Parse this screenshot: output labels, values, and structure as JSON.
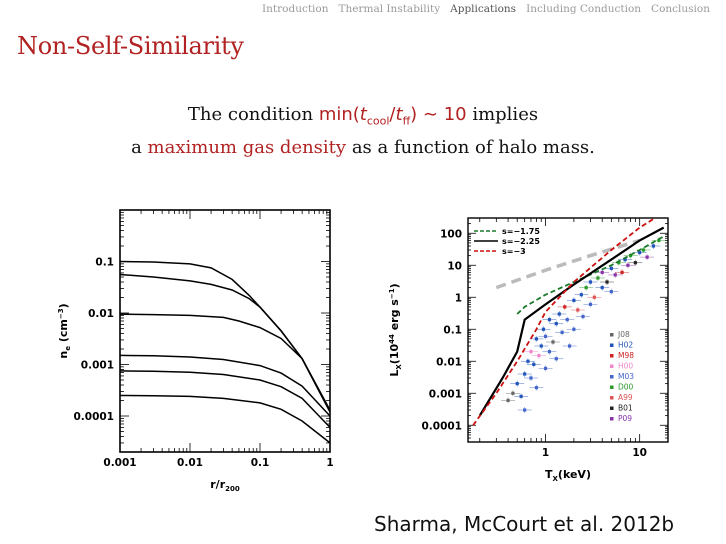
{
  "nav": {
    "items": [
      "Introduction",
      "Thermal Instability",
      "Applications",
      "Including Conduction",
      "Conclusion"
    ],
    "active_index": 2
  },
  "slide": {
    "title": "Non-Self-Similarity",
    "statement": {
      "pre": "The condition ",
      "math_min": "min(",
      "math_t1": "t",
      "math_sub1": "cool",
      "math_slash": "/",
      "math_t2": "t",
      "math_sub2": "ff",
      "math_close": ") ∼ 10",
      "post1": " implies",
      "line2_pre": "a ",
      "line2_hl": "maximum gas density",
      "line2_post": " as a function of halo mass."
    },
    "citation": "Sharma, McCourt et al. 2012b"
  },
  "chart_data": [
    {
      "type": "line",
      "xlabel": "r/r",
      "xlabel_sub": "200",
      "ylabel": "n",
      "ylabel_sub": "e",
      "ylabel_unit": " (cm",
      "ylabel_sup": "−3",
      "ylabel_close": ")",
      "xscale": "log",
      "yscale": "log",
      "xlim": [
        0.001,
        1
      ],
      "ylim": [
        2e-05,
        1
      ],
      "x_ticks": [
        "0.001",
        "0.01",
        "0.1",
        "1"
      ],
      "y_ticks": [
        "0.0001",
        "0.001",
        "0.01",
        "0.1"
      ],
      "series": [
        {
          "x": [
            0.001,
            0.003,
            0.01,
            0.02,
            0.04,
            0.07,
            0.1,
            0.2,
            0.4,
            1
          ],
          "y": [
            0.1,
            0.098,
            0.09,
            0.075,
            0.045,
            0.022,
            0.013,
            0.0045,
            0.0013,
            0.00012
          ]
        },
        {
          "x": [
            0.001,
            0.003,
            0.01,
            0.02,
            0.04,
            0.07,
            0.1,
            0.2,
            0.4,
            1
          ],
          "y": [
            0.056,
            0.05,
            0.042,
            0.036,
            0.028,
            0.019,
            0.013,
            0.0045,
            0.0013,
            0.00012
          ]
        },
        {
          "x": [
            0.001,
            0.003,
            0.01,
            0.03,
            0.05,
            0.1,
            0.2,
            0.4,
            1
          ],
          "y": [
            0.0095,
            0.0093,
            0.009,
            0.0082,
            0.007,
            0.0052,
            0.0032,
            0.0013,
            0.00013
          ]
        },
        {
          "x": [
            0.001,
            0.003,
            0.01,
            0.03,
            0.1,
            0.2,
            0.4,
            1
          ],
          "y": [
            0.0015,
            0.00148,
            0.0014,
            0.00125,
            0.00095,
            0.00068,
            0.00038,
            0.0001
          ]
        },
        {
          "x": [
            0.001,
            0.003,
            0.01,
            0.03,
            0.1,
            0.2,
            0.4,
            1
          ],
          "y": [
            0.00075,
            0.00074,
            0.00071,
            0.00064,
            0.0005,
            0.00037,
            0.00022,
            6e-05
          ]
        },
        {
          "x": [
            0.001,
            0.003,
            0.01,
            0.03,
            0.1,
            0.2,
            0.4,
            1
          ],
          "y": [
            0.00025,
            0.000248,
            0.00024,
            0.00022,
            0.00018,
            0.000135,
            8e-05,
            3e-05
          ]
        }
      ]
    },
    {
      "type": "scatter",
      "xlabel": "T",
      "xlabel_sub": "X",
      "xlabel_unit": "(keV)",
      "ylabel": "L",
      "ylabel_sub": "X",
      "ylabel_unit": "(10",
      "ylabel_sup": "44",
      "ylabel_close": " erg s",
      "ylabel_sup2": "−1",
      "ylabel_end": ")",
      "xscale": "log",
      "yscale": "log",
      "xlim": [
        0.15,
        20
      ],
      "ylim": [
        3e-05,
        300
      ],
      "x_ticks": [
        "1",
        "10"
      ],
      "y_ticks": [
        "0.0001",
        "0.001",
        "0.01",
        "0.1",
        "1",
        "10",
        "100"
      ],
      "model_lines": [
        {
          "name": "s=−1.75",
          "color": "#1a7a2a",
          "dash": true,
          "x": [
            0.5,
            0.6,
            1,
            2,
            5,
            10,
            18
          ],
          "y": [
            0.3,
            0.5,
            1.2,
            3,
            10,
            30,
            80
          ]
        },
        {
          "name": "s=−2.25",
          "color": "#000000",
          "dash": false,
          "x": [
            0.2,
            0.35,
            0.5,
            0.6,
            1,
            2,
            5,
            10,
            18
          ],
          "y": [
            0.0002,
            0.003,
            0.02,
            0.2,
            0.6,
            2.5,
            15,
            60,
            150
          ]
        },
        {
          "name": "s=−3",
          "color": "#cc1111",
          "dash": true,
          "x": [
            0.17,
            0.3,
            0.5,
            0.8,
            1,
            2,
            5,
            10,
            17
          ],
          "y": [
            0.0001,
            0.001,
            0.01,
            0.1,
            0.35,
            3,
            30,
            150,
            400
          ]
        }
      ],
      "selfsimilar_line": {
        "color": "#bbbbbb",
        "x": [
          0.3,
          1,
          3,
          10
        ],
        "y": [
          2,
          7,
          20,
          60
        ]
      },
      "datasets": [
        {
          "name": "J08",
          "color": "#666666"
        },
        {
          "name": "H02",
          "color": "#2255bb"
        },
        {
          "name": "M98",
          "color": "#cc2222"
        },
        {
          "name": "H00",
          "color": "#ee88cc"
        },
        {
          "name": "M03",
          "color": "#4466cc"
        },
        {
          "name": "D00",
          "color": "#2a9a2a"
        },
        {
          "name": "A99",
          "color": "#dd5555"
        },
        {
          "name": "B01",
          "color": "#222222"
        },
        {
          "name": "P09",
          "color": "#8833aa"
        }
      ],
      "points": [
        [
          0.4,
          0.0006,
          0
        ],
        [
          0.45,
          0.001,
          0
        ],
        [
          0.5,
          0.002,
          1
        ],
        [
          0.55,
          0.0008,
          1
        ],
        [
          0.6,
          0.004,
          1
        ],
        [
          0.6,
          0.0003,
          4
        ],
        [
          0.65,
          0.01,
          1
        ],
        [
          0.7,
          0.003,
          4
        ],
        [
          0.7,
          0.02,
          3
        ],
        [
          0.75,
          0.008,
          1
        ],
        [
          0.8,
          0.05,
          1
        ],
        [
          0.8,
          0.0015,
          4
        ],
        [
          0.85,
          0.015,
          3
        ],
        [
          0.9,
          0.03,
          1
        ],
        [
          0.95,
          0.1,
          1
        ],
        [
          1.0,
          0.006,
          4
        ],
        [
          1.0,
          0.06,
          4
        ],
        [
          1.1,
          0.2,
          1
        ],
        [
          1.1,
          0.02,
          4
        ],
        [
          1.2,
          0.04,
          0
        ],
        [
          1.3,
          0.15,
          1
        ],
        [
          1.3,
          0.012,
          4
        ],
        [
          1.4,
          0.3,
          1
        ],
        [
          1.5,
          0.08,
          4
        ],
        [
          1.6,
          0.5,
          2
        ],
        [
          1.7,
          0.2,
          4
        ],
        [
          1.8,
          0.03,
          4
        ],
        [
          2.0,
          0.8,
          1
        ],
        [
          2.0,
          0.1,
          4
        ],
        [
          2.2,
          0.4,
          6
        ],
        [
          2.4,
          1.2,
          1
        ],
        [
          2.5,
          0.25,
          4
        ],
        [
          2.7,
          2.0,
          5
        ],
        [
          3.0,
          0.6,
          4
        ],
        [
          3.0,
          3.0,
          1
        ],
        [
          3.3,
          1.0,
          6
        ],
        [
          3.6,
          4.0,
          5
        ],
        [
          4.0,
          2.0,
          1
        ],
        [
          4.0,
          6.0,
          8
        ],
        [
          4.5,
          3.0,
          7
        ],
        [
          5.0,
          8.0,
          1
        ],
        [
          5.0,
          1.5,
          4
        ],
        [
          5.5,
          5.0,
          8
        ],
        [
          6.0,
          12.0,
          5
        ],
        [
          6.5,
          6.0,
          2
        ],
        [
          7.0,
          15.0,
          1
        ],
        [
          7.5,
          10.0,
          8
        ],
        [
          8.0,
          20.0,
          5
        ],
        [
          9.0,
          12.0,
          7
        ],
        [
          10.0,
          25.0,
          1
        ],
        [
          11.0,
          30.0,
          5
        ],
        [
          12.0,
          18.0,
          8
        ],
        [
          14.0,
          40.0,
          1
        ],
        [
          16.0,
          60.0,
          5
        ]
      ]
    }
  ]
}
